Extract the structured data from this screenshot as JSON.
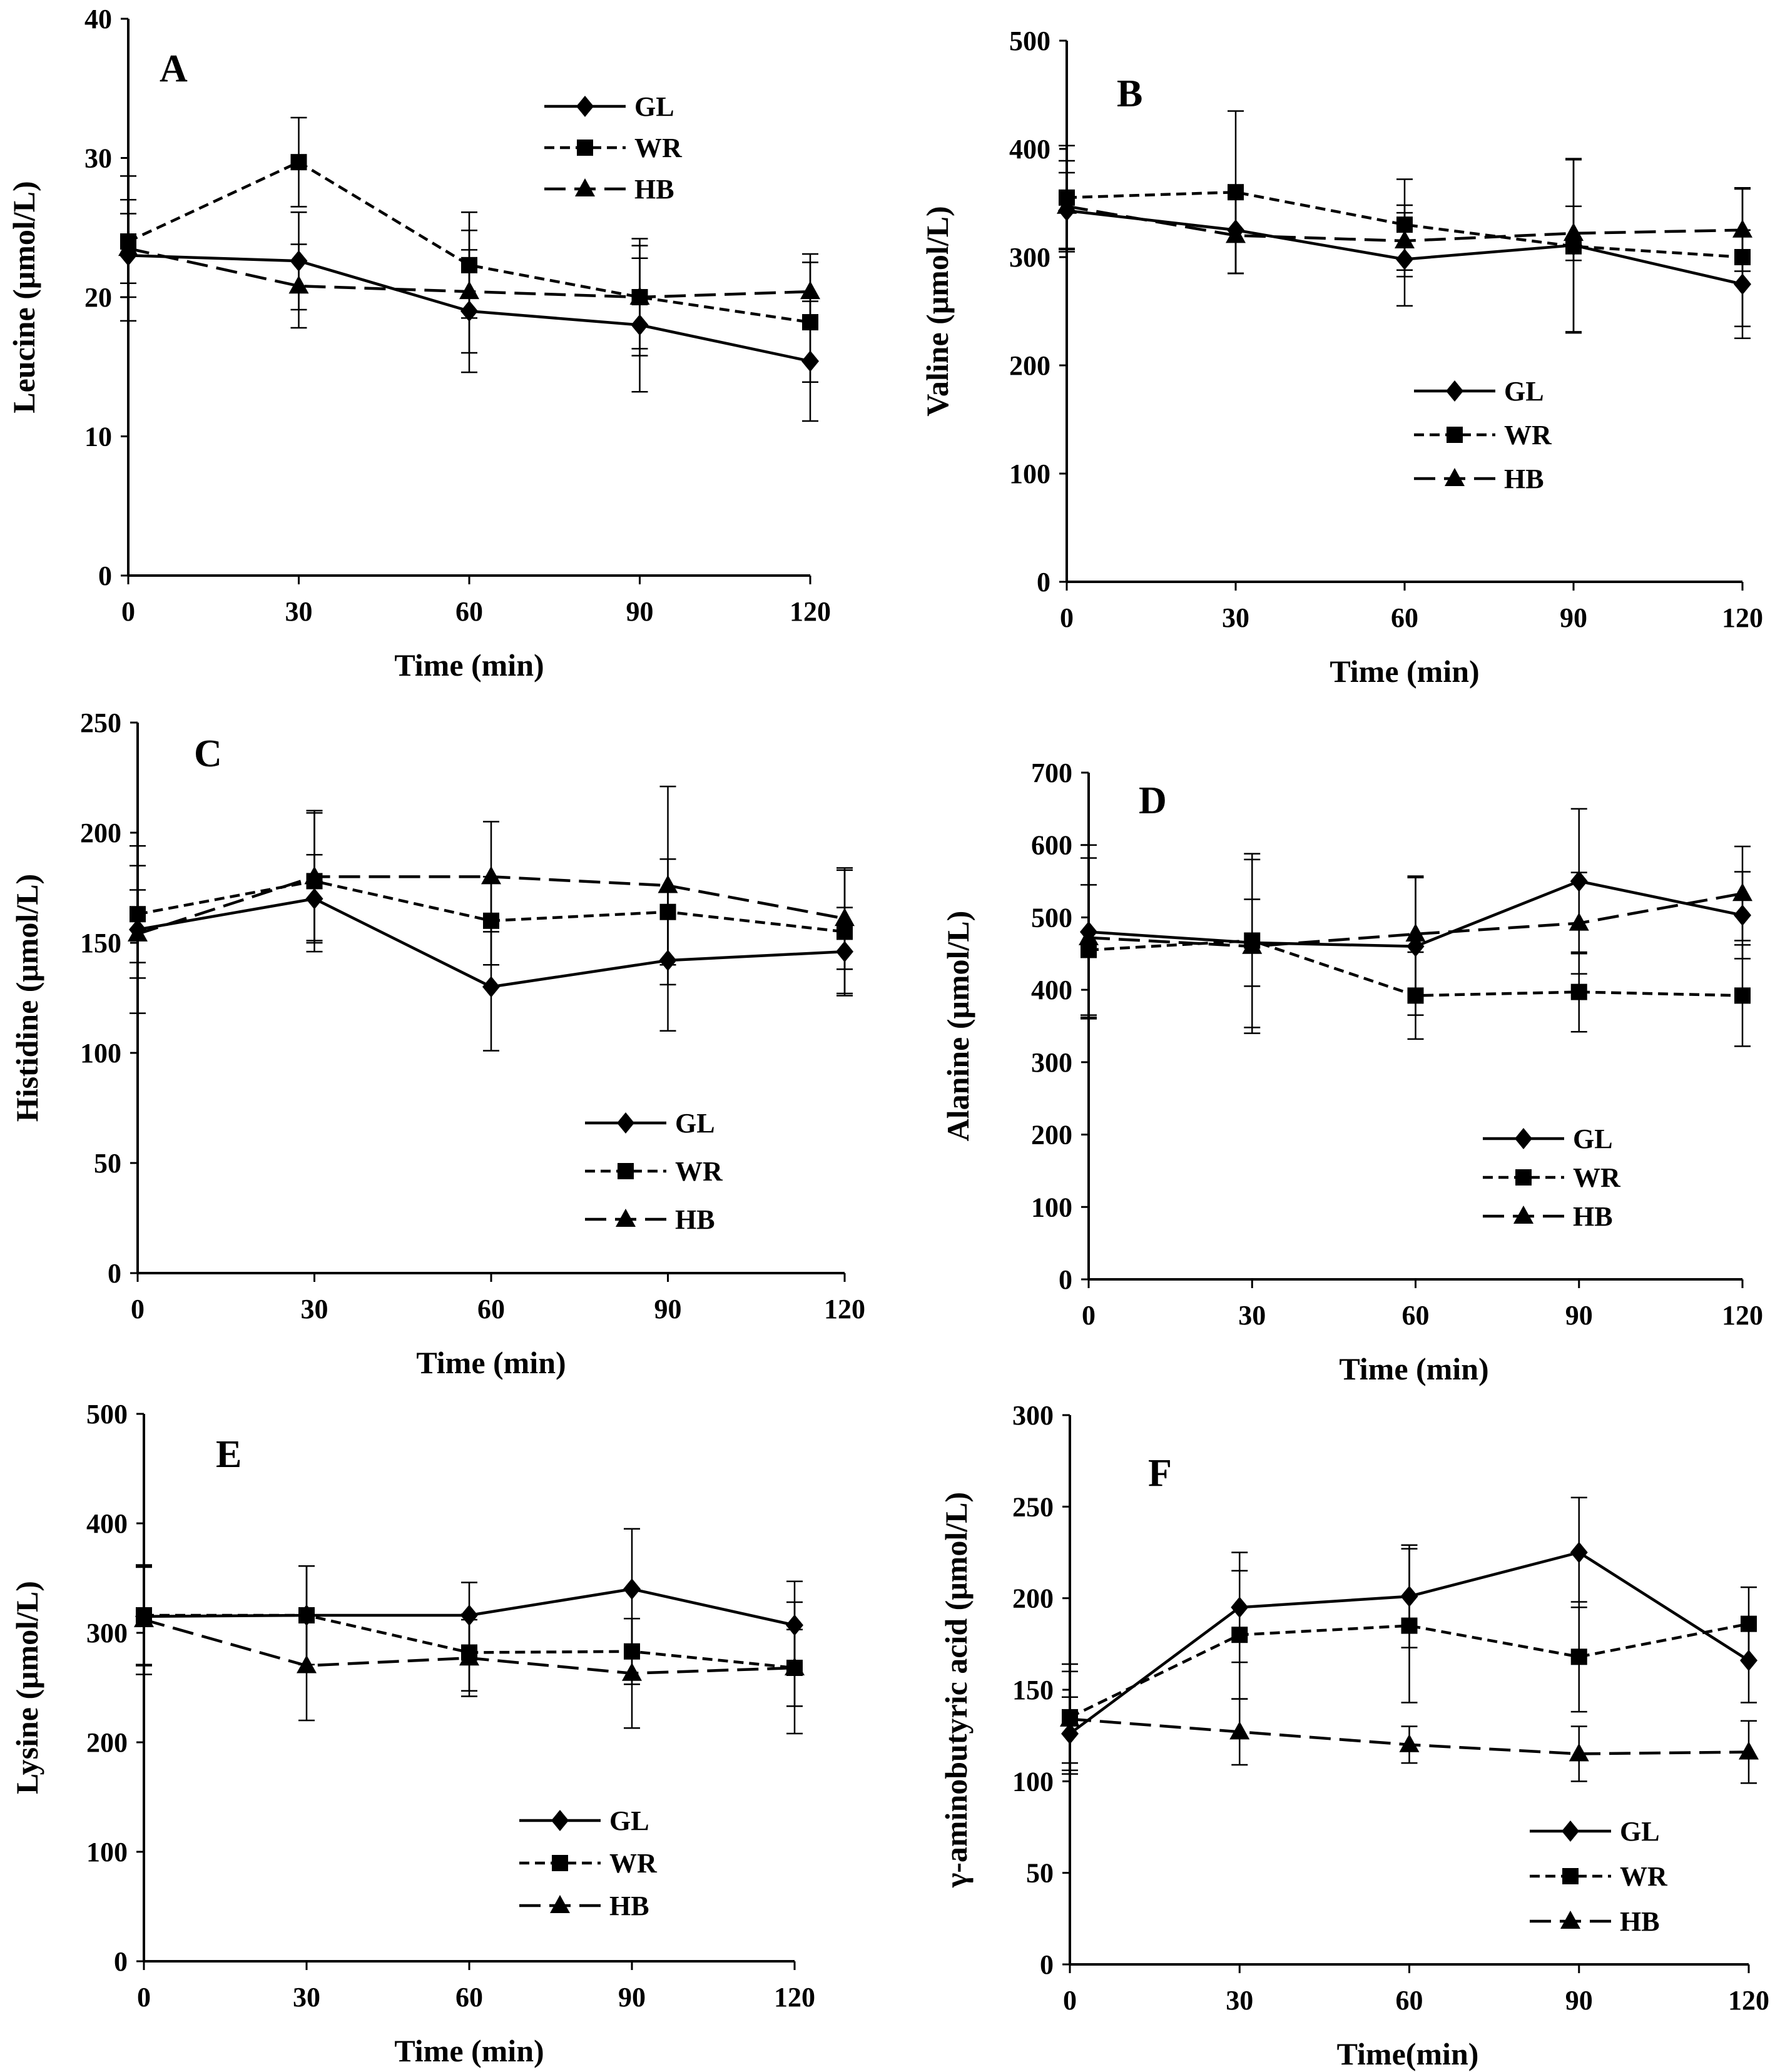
{
  "figure": {
    "title": ""
  },
  "series_styles": {
    "GL": {
      "marker": "diamond",
      "dash": "solid",
      "color": "#000000"
    },
    "WR": {
      "marker": "square",
      "dash": "short-dash",
      "color": "#000000"
    },
    "HB": {
      "marker": "triangle",
      "dash": "long-dash",
      "color": "#000000"
    }
  },
  "chart_data": [
    {
      "panel": "A",
      "type": "line",
      "xlabel": "Time (min)",
      "ylabel": "Leucine (μmol/L)",
      "x": [
        0,
        30,
        60,
        90,
        120
      ],
      "xticks": [
        "0",
        "30",
        "60",
        "90",
        "120"
      ],
      "ylim": [
        0,
        40
      ],
      "yticks": [
        "0",
        "10",
        "20",
        "30",
        "40"
      ],
      "legend": [
        "GL",
        "WR",
        "HB"
      ],
      "legend_position": "top-right",
      "series": [
        {
          "name": "GL",
          "values": [
            23,
            22.6,
            19,
            18,
            15.4
          ],
          "errors": [
            3,
            3.5,
            4.4,
            4.8,
            4.3
          ]
        },
        {
          "name": "WR",
          "values": [
            24,
            29.7,
            22.3,
            20,
            18.2
          ],
          "errors": [
            3,
            3.2,
            3.8,
            4.2,
            4.3
          ]
        },
        {
          "name": "HB",
          "values": [
            23.5,
            20.8,
            20.4,
            20,
            20.4
          ],
          "errors": [
            5.2,
            3,
            4.4,
            3.7,
            2.7
          ]
        }
      ]
    },
    {
      "panel": "B",
      "type": "line",
      "xlabel": "Time (min)",
      "ylabel": "Valine (μmol/L)",
      "x": [
        0,
        30,
        60,
        90,
        120
      ],
      "xticks": [
        "0",
        "30",
        "60",
        "90",
        "120"
      ],
      "ylim": [
        0,
        500
      ],
      "yticks": [
        "0",
        "100",
        "200",
        "300",
        "400",
        "500"
      ],
      "legend": [
        "GL",
        "WR",
        "HB"
      ],
      "legend_position": "bottom-right",
      "series": [
        {
          "name": "GL",
          "values": [
            343,
            325,
            298,
            311,
            275
          ],
          "errors": [
            35,
            40,
            43,
            80,
            50
          ]
        },
        {
          "name": "WR",
          "values": [
            355,
            360,
            330,
            310,
            300
          ],
          "errors": [
            48,
            75,
            42,
            80,
            64
          ]
        },
        {
          "name": "HB",
          "values": [
            347,
            320,
            315,
            322,
            325
          ],
          "errors": [
            42,
            35,
            33,
            25,
            38
          ]
        }
      ]
    },
    {
      "panel": "C",
      "type": "line",
      "xlabel": "Time (min)",
      "ylabel": "Histidine (μmol/L)",
      "x": [
        0,
        30,
        60,
        90,
        120
      ],
      "xticks": [
        "0",
        "30",
        "60",
        "90",
        "120"
      ],
      "ylim": [
        0,
        250
      ],
      "yticks": [
        "0",
        "50",
        "100",
        "150",
        "200",
        "250"
      ],
      "legend": [
        "GL",
        "WR",
        "HB"
      ],
      "legend_position": "bottom-right",
      "series": [
        {
          "name": "GL",
          "values": [
            156,
            170,
            130,
            142,
            146
          ],
          "errors": [
            38,
            20,
            29,
            32,
            20
          ]
        },
        {
          "name": "WR",
          "values": [
            163,
            178,
            160,
            164,
            155
          ],
          "errors": [
            22,
            32,
            20,
            24,
            28
          ]
        },
        {
          "name": "HB",
          "values": [
            154,
            180,
            180,
            176,
            161
          ],
          "errors": [
            20,
            29,
            25,
            45,
            23
          ]
        }
      ]
    },
    {
      "panel": "D",
      "type": "line",
      "xlabel": "Time (min)",
      "ylabel": "Alanine (μmol/L)",
      "x": [
        0,
        30,
        60,
        90,
        120
      ],
      "xticks": [
        "0",
        "30",
        "60",
        "90",
        "120"
      ],
      "ylim": [
        0,
        700
      ],
      "yticks": [
        "0",
        "100",
        "200",
        "300",
        "400",
        "500",
        "600",
        "700"
      ],
      "legend": [
        "GL",
        "WR",
        "HB"
      ],
      "legend_position": "bottom-right",
      "series": [
        {
          "name": "GL",
          "values": [
            480,
            465,
            460,
            550,
            503
          ],
          "errors": [
            120,
            60,
            95,
            100,
            60
          ]
        },
        {
          "name": "WR",
          "values": [
            455,
            468,
            392,
            397,
            392
          ],
          "errors": [
            90,
            120,
            60,
            55,
            70
          ]
        },
        {
          "name": "HB",
          "values": [
            472,
            460,
            477,
            492,
            533
          ],
          "errors": [
            110,
            120,
            80,
            70,
            65
          ]
        }
      ]
    },
    {
      "panel": "E",
      "type": "line",
      "xlabel": "Time (min)",
      "ylabel": "Lysine (μmol/L)",
      "x": [
        0,
        30,
        60,
        90,
        120
      ],
      "xticks": [
        "0",
        "30",
        "60",
        "90",
        "120"
      ],
      "ylim": [
        0,
        500
      ],
      "yticks": [
        "0",
        "100",
        "200",
        "300",
        "400",
        "500"
      ],
      "legend": [
        "GL",
        "WR",
        "HB"
      ],
      "legend_position": "bottom-right",
      "series": [
        {
          "name": "GL",
          "values": [
            315,
            316,
            316,
            340,
            307
          ],
          "errors": [
            45,
            45,
            30,
            55,
            40
          ]
        },
        {
          "name": "WR",
          "values": [
            316,
            316,
            282,
            283,
            268
          ],
          "errors": [
            45,
            45,
            35,
            30,
            35
          ]
        },
        {
          "name": "HB",
          "values": [
            312,
            270,
            277,
            263,
            268
          ],
          "errors": [
            50,
            50,
            35,
            50,
            60
          ]
        }
      ]
    },
    {
      "panel": "F",
      "type": "line",
      "xlabel": "Time(min)",
      "ylabel": "γ-aminobutyric acid (μmol/L)",
      "x": [
        0,
        30,
        60,
        90,
        120
      ],
      "xticks": [
        "0",
        "30",
        "60",
        "90",
        "120"
      ],
      "ylim": [
        0,
        300
      ],
      "yticks": [
        "0",
        "50",
        "100",
        "150",
        "200",
        "250",
        "300"
      ],
      "legend": [
        "GL",
        "WR",
        "HB"
      ],
      "legend_position": "bottom-right",
      "series": [
        {
          "name": "GL",
          "values": [
            126,
            195,
            201,
            225,
            166
          ],
          "errors": [
            20,
            30,
            28,
            30,
            23
          ]
        },
        {
          "name": "WR",
          "values": [
            135,
            180,
            185,
            168,
            186
          ],
          "errors": [
            25,
            35,
            42,
            30,
            20
          ]
        },
        {
          "name": "HB",
          "values": [
            134,
            127,
            120,
            115,
            116
          ],
          "errors": [
            30,
            18,
            10,
            15,
            17
          ]
        }
      ]
    }
  ]
}
